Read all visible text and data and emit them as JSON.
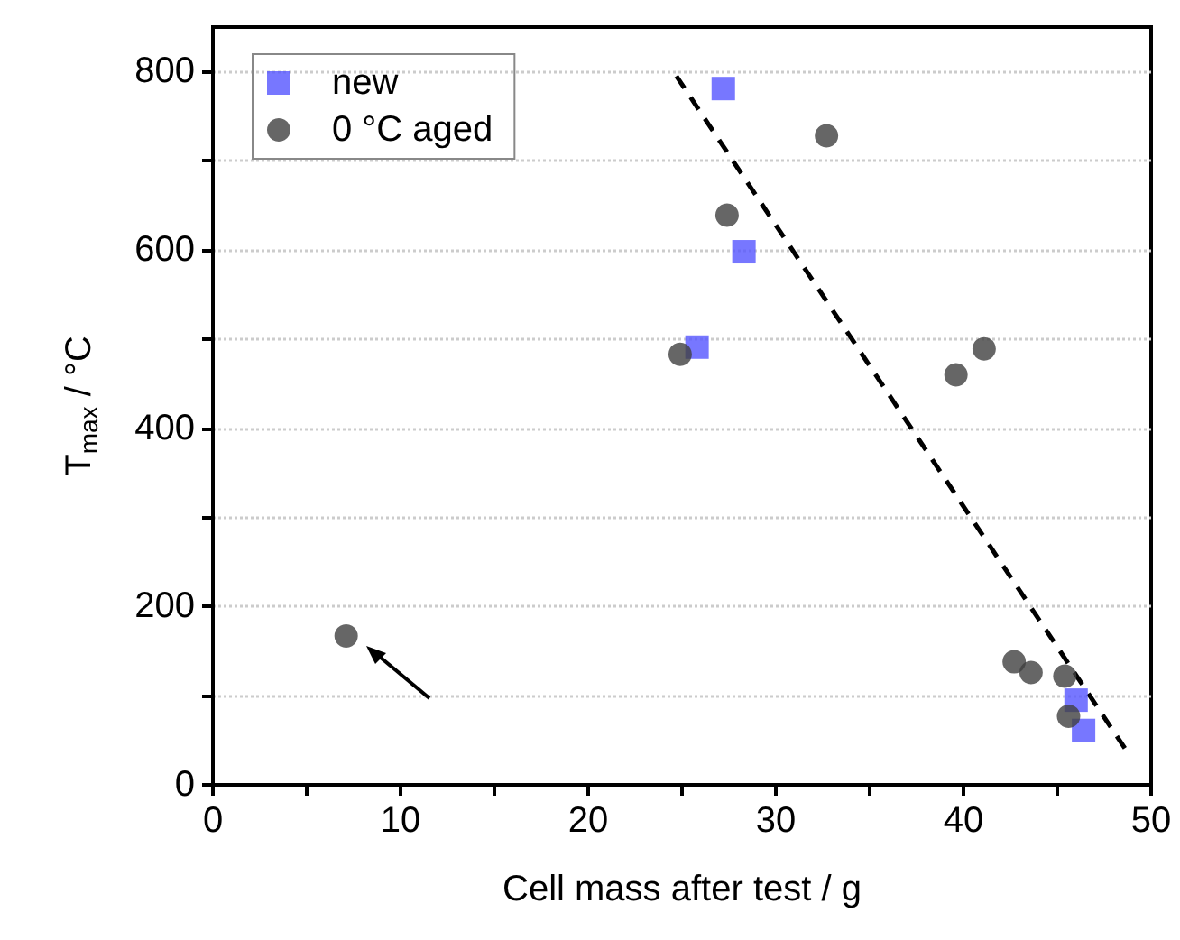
{
  "chart_data": {
    "type": "scatter",
    "xlabel": "Cell mass after test / g",
    "ylabel": "T$_{max}$ / °C",
    "xlim": [
      0,
      50
    ],
    "xticks": [
      0,
      10,
      20,
      30,
      40,
      50
    ],
    "ylim": [
      0,
      850
    ],
    "yticks": [
      0,
      200,
      400,
      600,
      800
    ],
    "grid": "y",
    "legend": "top left",
    "series": [
      {
        "name": "new",
        "marker": "square",
        "color": "#5555ff",
        "x": [
          27.2,
          28.3,
          25.8,
          46.0,
          46.4
        ],
        "values": [
          781,
          598,
          491,
          95,
          61
        ]
      },
      {
        "name": "0 °C aged",
        "marker": "circle",
        "color": "#404040",
        "x": [
          24.9,
          27.4,
          32.7,
          39.6,
          41.1,
          7.1,
          42.7,
          43.6,
          45.4,
          45.6
        ],
        "values": [
          483,
          639,
          728,
          460,
          489,
          167,
          138,
          126,
          122,
          77
        ]
      },
      {
        "type": "line",
        "line_style": "dashed",
        "marker": "none",
        "color": "#000000",
        "x": [
          24.7,
          48.6
        ],
        "values": [
          795,
          41
        ]
      }
    ]
  }
}
